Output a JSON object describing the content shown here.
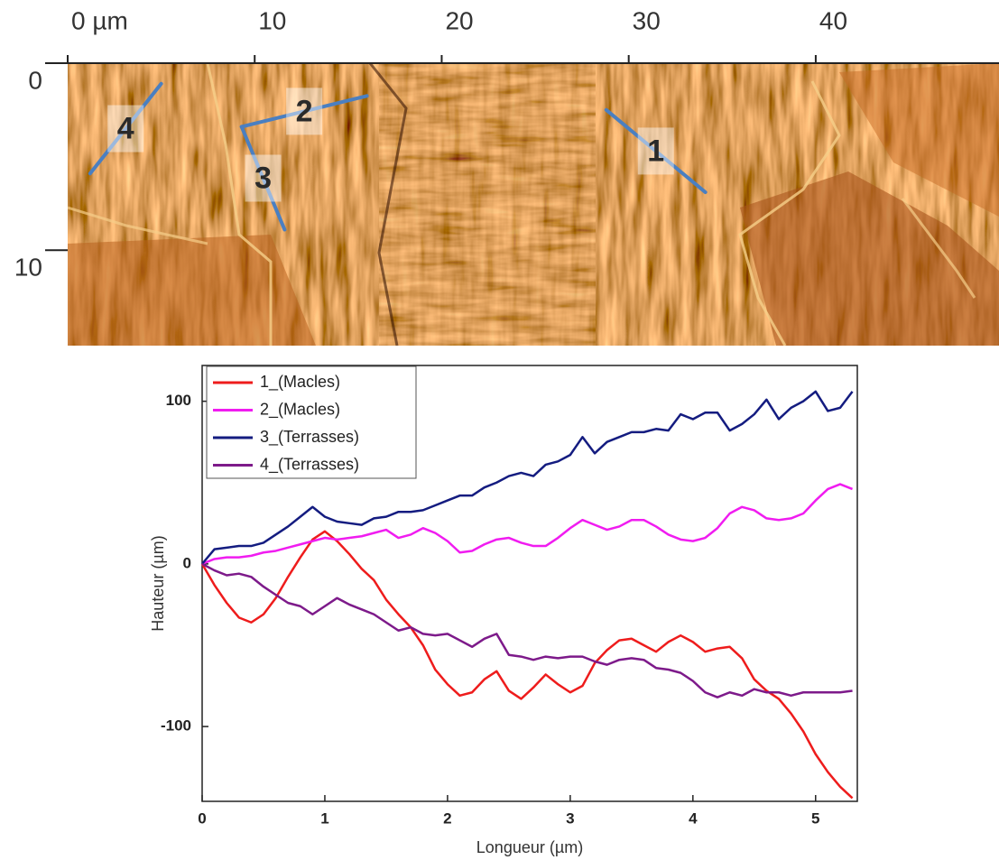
{
  "chart_data": [
    {
      "type": "image",
      "xlim": [
        0,
        49.8
      ],
      "ylim": [
        0,
        15.1
      ],
      "xticks": [
        {
          "value": 0,
          "label": "0 µm"
        },
        10,
        20,
        30,
        40
      ],
      "yticks": [
        0,
        10
      ],
      "line_color": "#4a7fc1",
      "profiles": [
        {
          "label": "1",
          "x": [
            28.8,
            34.1
          ],
          "y": [
            2.5,
            6.9
          ]
        },
        {
          "label": "2",
          "x": [
            9.3,
            16.0
          ],
          "y": [
            3.4,
            1.75
          ]
        },
        {
          "label": "3",
          "x": [
            9.3,
            11.6
          ],
          "y": [
            3.4,
            8.9
          ]
        },
        {
          "label": "4",
          "x": [
            1.2,
            5.0
          ],
          "y": [
            5.9,
            1.1
          ]
        }
      ]
    },
    {
      "type": "line",
      "xlabel": "Longueur (µm)",
      "ylabel": "Hauteur (µm)",
      "xlim": [
        0,
        5.34
      ],
      "ylim": [
        -146,
        122
      ],
      "xticks": [
        0,
        1,
        2,
        3,
        4,
        5
      ],
      "yticks": [
        -100,
        0,
        100
      ],
      "legend": "upper left",
      "x": [
        0,
        0.1,
        0.2,
        0.3,
        0.4,
        0.5,
        0.6,
        0.7,
        0.8,
        0.9,
        1.0,
        1.1,
        1.2,
        1.3,
        1.4,
        1.5,
        1.6,
        1.7,
        1.8,
        1.9,
        2.0,
        2.1,
        2.2,
        2.3,
        2.4,
        2.5,
        2.6,
        2.7,
        2.8,
        2.9,
        3.0,
        3.1,
        3.2,
        3.3,
        3.4,
        3.5,
        3.6,
        3.7,
        3.8,
        3.9,
        4.0,
        4.1,
        4.2,
        4.3,
        4.4,
        4.5,
        4.6,
        4.7,
        4.8,
        4.9,
        5.0,
        5.1,
        5.2,
        5.3
      ],
      "series": [
        {
          "name": "1_(Macles)",
          "color": "#ee1c1c",
          "values": [
            0,
            -13,
            -24,
            -33,
            -36,
            -31,
            -21,
            -8,
            4,
            15,
            20,
            14,
            6,
            -3,
            -10,
            -22,
            -31,
            -39,
            -50,
            -65,
            -74,
            -81,
            -79,
            -71,
            -66,
            -78,
            -83,
            -76,
            -68,
            -74,
            -79,
            -75,
            -61,
            -53,
            -47,
            -46,
            -50,
            -54,
            -48,
            -44,
            -48,
            -54,
            -52,
            -51,
            -58,
            -71,
            -78,
            -83,
            -92,
            -103,
            -117,
            -128,
            -137,
            -144
          ]
        },
        {
          "name": "2_(Macles)",
          "color": "#f01cf0",
          "values": [
            0,
            3,
            4,
            4,
            5,
            7,
            8,
            10,
            12,
            14,
            16,
            15,
            16,
            17,
            19,
            21,
            16,
            18,
            22,
            19,
            14,
            7,
            8,
            12,
            15,
            16,
            13,
            11,
            11,
            16,
            22,
            27,
            24,
            21,
            23,
            27,
            27,
            23,
            18,
            15,
            14,
            16,
            22,
            31,
            35,
            33,
            28,
            27,
            28,
            31,
            39,
            46,
            49,
            46
          ]
        },
        {
          "name": "3_(Terrasses)",
          "color": "#141c80",
          "values": [
            0,
            9,
            10,
            11,
            11,
            13,
            18,
            23,
            29,
            35,
            29,
            26,
            25,
            24,
            28,
            29,
            32,
            32,
            33,
            36,
            39,
            42,
            42,
            47,
            50,
            54,
            56,
            54,
            61,
            63,
            67,
            78,
            68,
            75,
            78,
            81,
            81,
            83,
            82,
            92,
            89,
            93,
            93,
            82,
            86,
            92,
            101,
            89,
            96,
            100,
            106,
            94,
            96,
            106
          ]
        },
        {
          "name": "4_(Terrasses)",
          "color": "#7d1a8a",
          "values": [
            0,
            -4,
            -7,
            -6,
            -8,
            -14,
            -19,
            -24,
            -26,
            -31,
            -26,
            -21,
            -25,
            -28,
            -31,
            -36,
            -41,
            -39,
            -43,
            -44,
            -43,
            -47,
            -51,
            -46,
            -43,
            -56,
            -57,
            -59,
            -57,
            -58,
            -57,
            -57,
            -60,
            -62,
            -59,
            -58,
            -59,
            -64,
            -65,
            -67,
            -72,
            -79,
            -82,
            -79,
            -81,
            -77,
            -79,
            -79,
            -81,
            -79,
            -79,
            -79,
            -79,
            -78
          ]
        }
      ]
    }
  ]
}
